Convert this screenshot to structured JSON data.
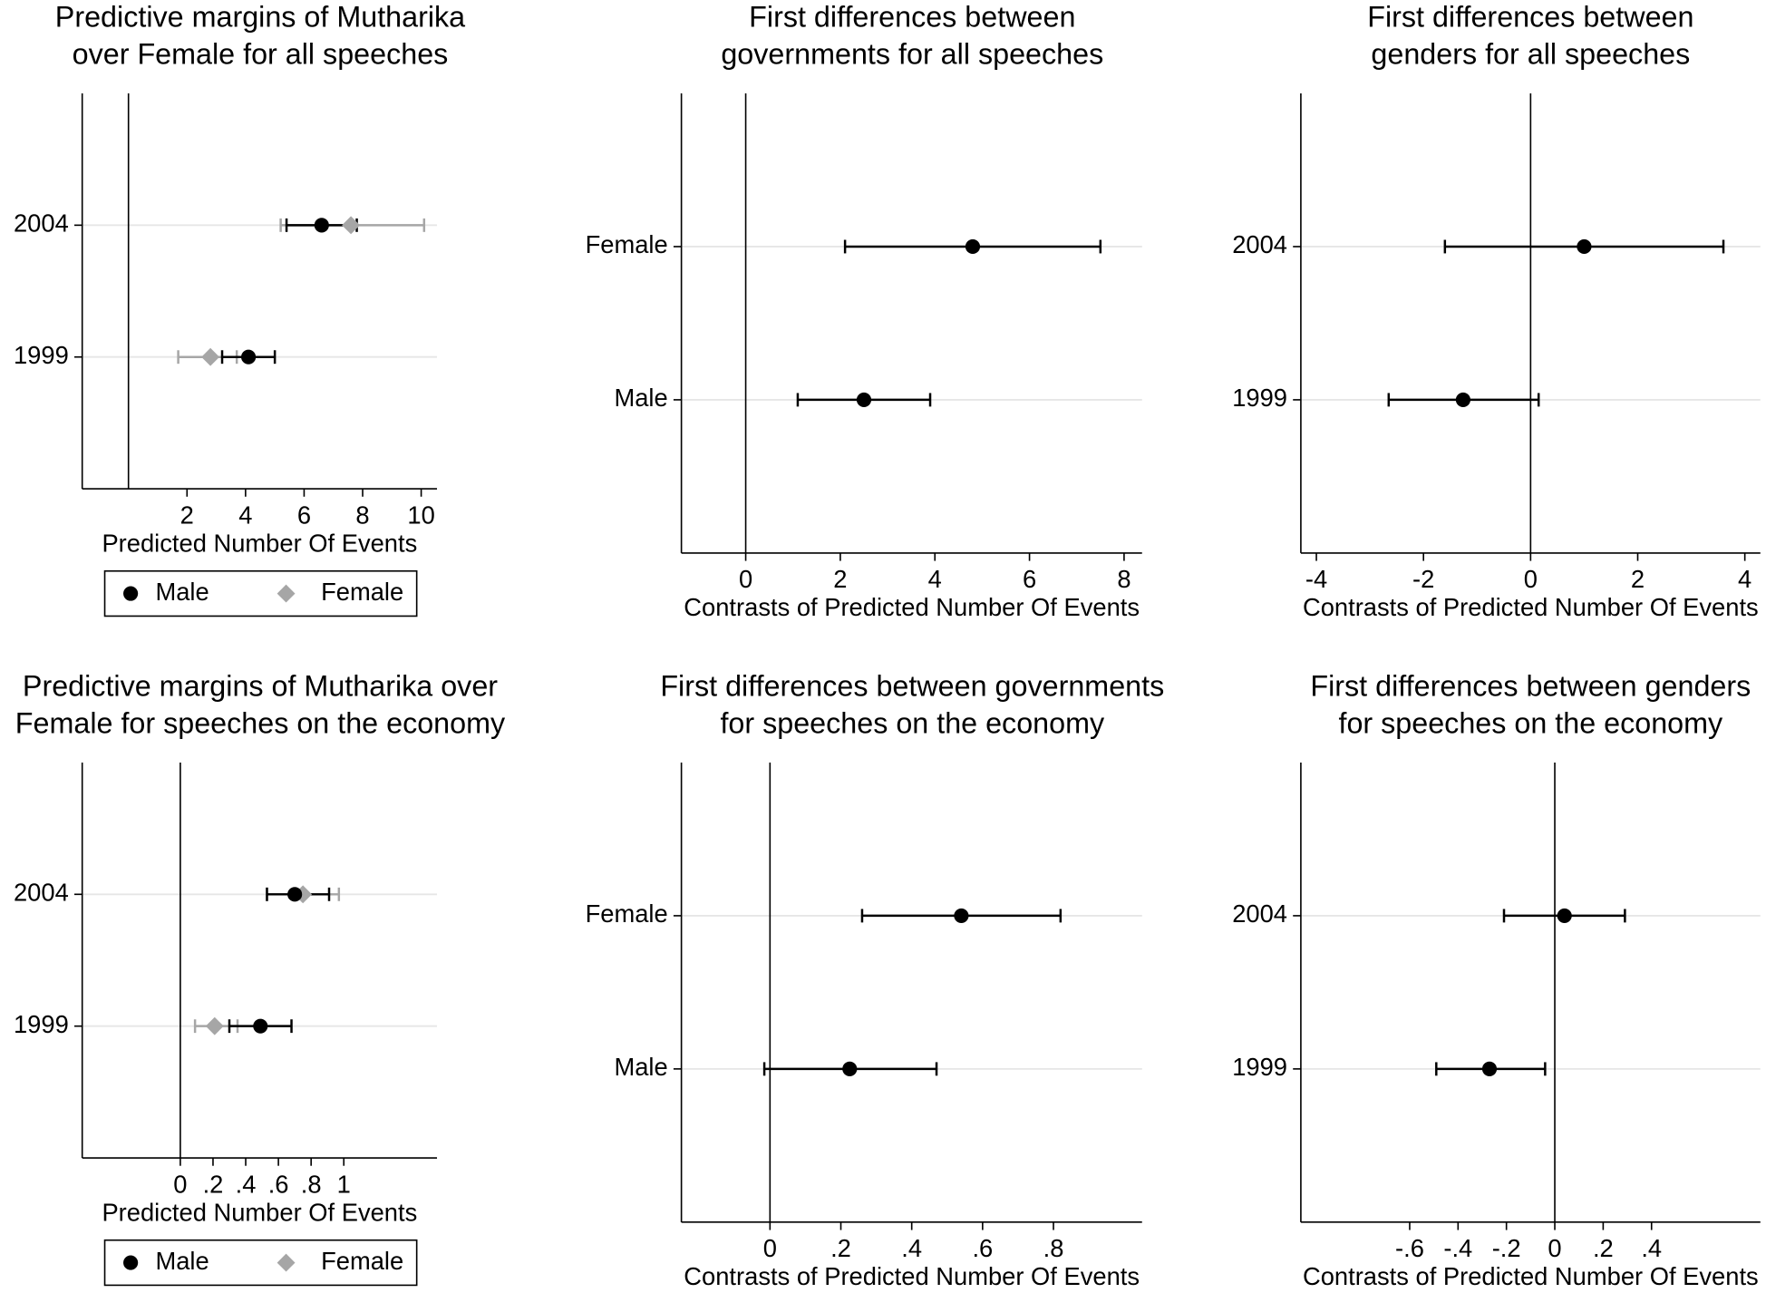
{
  "chart_data": [
    {
      "type": "dot",
      "title": [
        "Predictive margins of Mutharika",
        "over Female for all speeches"
      ],
      "xlabel": "Predicted Number Of Events",
      "categories": [
        "1999",
        "2004"
      ],
      "xlim": [
        -1.58,
        10.54
      ],
      "xticks": [
        2,
        4,
        6,
        8,
        10
      ],
      "refline": 0,
      "series": [
        {
          "name": "Male",
          "color": "#000000",
          "marker": "circle",
          "values": [
            4.1,
            6.6
          ],
          "lower": [
            3.2,
            5.4
          ],
          "upper": [
            5.0,
            7.8
          ]
        },
        {
          "name": "Female",
          "color": "#a6a6a6",
          "marker": "diamond",
          "values": [
            2.8,
            7.6
          ],
          "lower": [
            1.7,
            5.2
          ],
          "upper": [
            3.7,
            10.1
          ]
        }
      ]
    },
    {
      "type": "dot",
      "title": [
        "First differences between",
        "governments for all speeches"
      ],
      "xlabel": "Contrasts of Predicted Number Of Events",
      "categories": [
        "Male",
        "Female"
      ],
      "xlim": [
        -1.36,
        8.38
      ],
      "xticks": [
        0,
        2,
        4,
        6,
        8
      ],
      "refline": 0,
      "color": "#000000",
      "marker": "circle",
      "values": [
        2.5,
        4.8
      ],
      "lower": [
        1.1,
        2.1
      ],
      "upper": [
        3.9,
        7.5
      ]
    },
    {
      "type": "dot",
      "title": [
        "First differences between",
        "genders for all speeches"
      ],
      "xlabel": "Contrasts of Predicted Number Of Events",
      "categories": [
        "1999",
        "2004"
      ],
      "xlim": [
        -4.29,
        4.29
      ],
      "xticks": [
        -4,
        -2,
        0,
        2,
        4
      ],
      "refline": 0,
      "color": "#000000",
      "marker": "circle",
      "values": [
        -1.26,
        1.0
      ],
      "lower": [
        -2.65,
        -1.6
      ],
      "upper": [
        0.15,
        3.6
      ]
    },
    {
      "type": "dot",
      "title": [
        "Predictive margins of Mutharika over",
        "Female for speeches on the economy"
      ],
      "xlabel": "Predicted Number Of Events",
      "categories": [
        "1999",
        "2004"
      ],
      "xlim": [
        -0.6,
        1.57
      ],
      "xticks": [
        0,
        {
          "value": 0.2,
          "label": ".2"
        },
        {
          "value": 0.4,
          "label": ".4"
        },
        {
          "value": 0.6,
          "label": ".6"
        },
        {
          "value": 0.8,
          "label": ".8"
        },
        1
      ],
      "refline": 0,
      "series": [
        {
          "name": "Male",
          "color": "#000000",
          "marker": "circle",
          "values": [
            0.49,
            0.7
          ],
          "lower": [
            0.3,
            0.53
          ],
          "upper": [
            0.68,
            0.91
          ]
        },
        {
          "name": "Female",
          "color": "#a6a6a6",
          "marker": "diamond",
          "values": [
            0.21,
            0.75
          ],
          "lower": [
            0.09,
            0.53
          ],
          "upper": [
            0.35,
            0.97
          ]
        }
      ]
    },
    {
      "type": "dot",
      "title": [
        "First differences between governments",
        "for speeches on the economy"
      ],
      "xlabel": "Contrasts of Predicted Number Of Events",
      "categories": [
        "Male",
        "Female"
      ],
      "xlim": [
        -0.25,
        1.05
      ],
      "xticks": [
        0,
        {
          "value": 0.2,
          "label": ".2"
        },
        {
          "value": 0.4,
          "label": ".4"
        },
        {
          "value": 0.6,
          "label": ".6"
        },
        {
          "value": 0.8,
          "label": ".8"
        }
      ],
      "refline": 0,
      "color": "#000000",
      "marker": "circle",
      "values": [
        0.225,
        0.54
      ],
      "lower": [
        -0.016,
        0.26
      ],
      "upper": [
        0.47,
        0.82
      ]
    },
    {
      "type": "dot",
      "title": [
        "First differences between genders",
        "for speeches on the economy"
      ],
      "xlabel": "Contrasts of Predicted Number Of Events",
      "categories": [
        "1999",
        "2004"
      ],
      "xlim": [
        -1.05,
        0.85
      ],
      "xticks": [
        {
          "value": -0.6,
          "label": "-.6"
        },
        {
          "value": -0.4,
          "label": "-.4"
        },
        {
          "value": -0.2,
          "label": "-.2"
        },
        0,
        {
          "value": 0.2,
          "label": ".2"
        },
        {
          "value": 0.4,
          "label": ".4"
        }
      ],
      "refline": 0,
      "color": "#000000",
      "marker": "circle",
      "values": [
        -0.27,
        0.04
      ],
      "lower": [
        -0.49,
        -0.21
      ],
      "upper": [
        -0.04,
        0.29
      ]
    }
  ]
}
